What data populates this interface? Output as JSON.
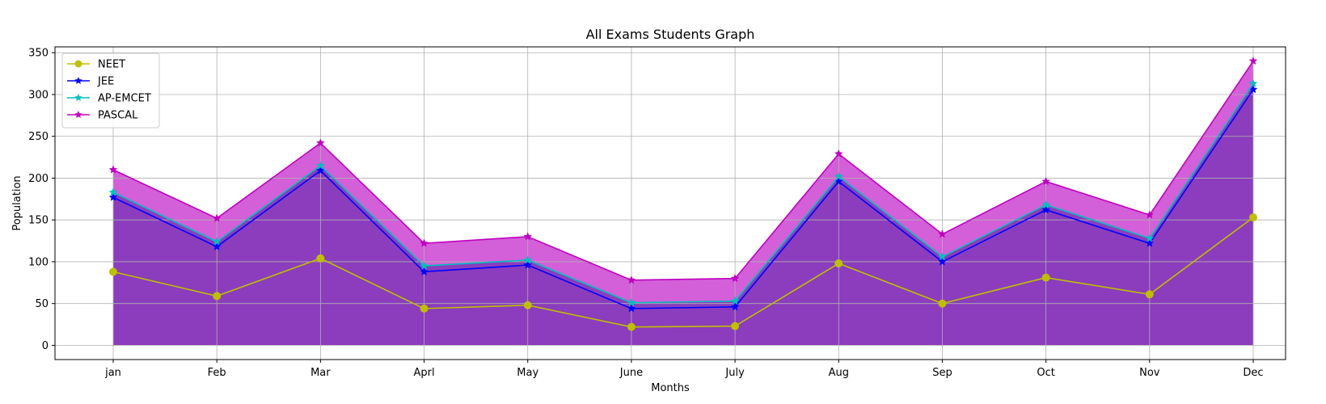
{
  "chart_data": {
    "type": "line",
    "title": "All Exams Students Graph",
    "xlabel": "Months",
    "ylabel": "Population",
    "categories": [
      "jan",
      "Feb",
      "Mar",
      "Aprl",
      "May",
      "June",
      "July",
      "Aug",
      "Sep",
      "Oct",
      "Nov",
      "Dec"
    ],
    "ylim": [
      -17,
      357
    ],
    "yticks": [
      0,
      50,
      100,
      150,
      200,
      250,
      300,
      350
    ],
    "grid": true,
    "legend_position": "top-left",
    "series": [
      {
        "name": "NEET",
        "color": "#bfbf00",
        "marker": "circle",
        "values": [
          88,
          59,
          104,
          44,
          48,
          22,
          23,
          98,
          50,
          81,
          61,
          153
        ]
      },
      {
        "name": "JEE",
        "color": "#0000ff",
        "marker": "star",
        "values": [
          177,
          118,
          209,
          88,
          96,
          44,
          46,
          196,
          100,
          162,
          122,
          306
        ]
      },
      {
        "name": "AP-EMCET",
        "color": "#00bfbf",
        "marker": "star",
        "values": [
          183,
          124,
          215,
          95,
          102,
          51,
          53,
          202,
          106,
          168,
          128,
          313
        ]
      },
      {
        "name": "PASCAL",
        "color": "#bf00bf",
        "marker": "star",
        "values": [
          210,
          152,
          242,
          122,
          130,
          78,
          80,
          229,
          133,
          196,
          156,
          340
        ]
      }
    ],
    "fills": [
      {
        "between": [
          "PASCAL",
          "baseline"
        ],
        "color": "#d35fd9"
      },
      {
        "between": [
          "AP-EMCET",
          "baseline"
        ],
        "color": "#8b3dbd"
      }
    ]
  }
}
